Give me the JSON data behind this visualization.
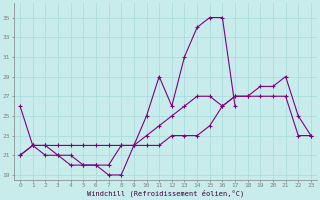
{
  "hours": [
    0,
    1,
    2,
    3,
    4,
    5,
    6,
    7,
    8,
    9,
    10,
    11,
    12,
    13,
    14,
    15,
    16,
    17,
    18,
    19,
    20,
    21,
    22,
    23
  ],
  "line1": [
    26,
    22,
    21,
    21,
    20,
    20,
    20,
    19,
    19,
    22,
    25,
    29,
    26,
    31,
    34,
    35,
    35,
    26,
    null,
    null,
    null,
    null,
    null,
    null
  ],
  "line2": [
    21,
    22,
    22,
    21,
    21,
    20,
    20,
    20,
    22,
    22,
    23,
    24,
    25,
    26,
    27,
    27,
    26,
    27,
    27,
    28,
    28,
    29,
    25,
    23
  ],
  "line3": [
    21,
    22,
    22,
    22,
    22,
    22,
    22,
    22,
    22,
    22,
    22,
    22,
    23,
    23,
    23,
    24,
    26,
    27,
    27,
    27,
    27,
    27,
    23,
    23
  ],
  "bg_color": "#c8ecec",
  "line_color": "#800080",
  "grid_color": "#a8d8d8",
  "xlabel": "Windchill (Refroidissement éolien,°C)",
  "ylabel_ticks": [
    19,
    21,
    23,
    25,
    27,
    29,
    31,
    33,
    35
  ],
  "ylim": [
    18.5,
    36.5
  ],
  "xlim": [
    -0.5,
    23.5
  ]
}
